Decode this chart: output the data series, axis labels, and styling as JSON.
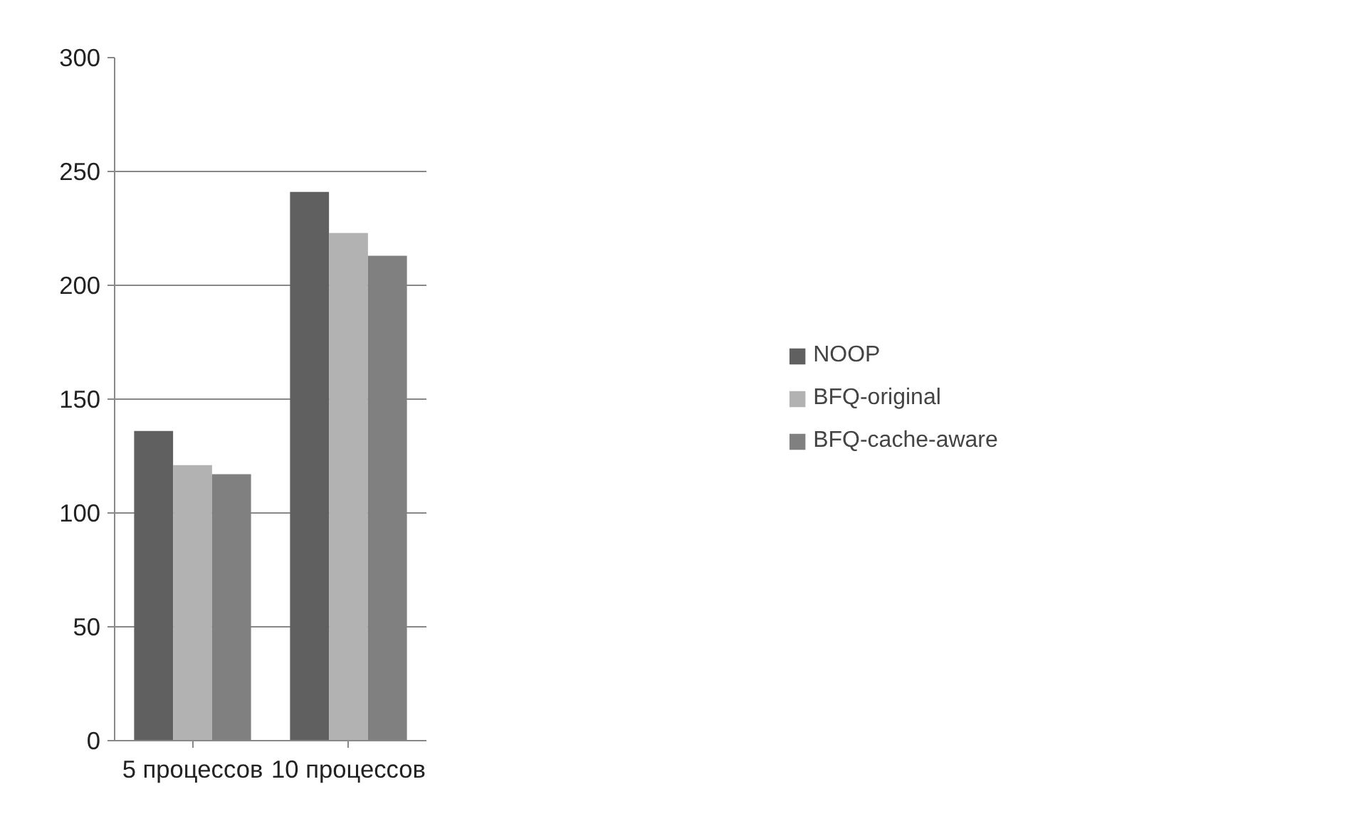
{
  "chart_data": {
    "type": "bar",
    "categories": [
      "5 процессов",
      "10 процессов"
    ],
    "series": [
      {
        "name": "NOOP",
        "color": "#606060",
        "values": [
          136,
          241
        ]
      },
      {
        "name": "BFQ-original",
        "color": "#b2b2b2",
        "values": [
          121,
          223
        ]
      },
      {
        "name": "BFQ-cache-aware",
        "color": "#808080",
        "values": [
          117,
          213
        ]
      }
    ],
    "ylim": [
      0,
      300
    ],
    "yticks": [
      0,
      50,
      100,
      150,
      200,
      250,
      300
    ],
    "grid": "y",
    "legend": "right"
  }
}
